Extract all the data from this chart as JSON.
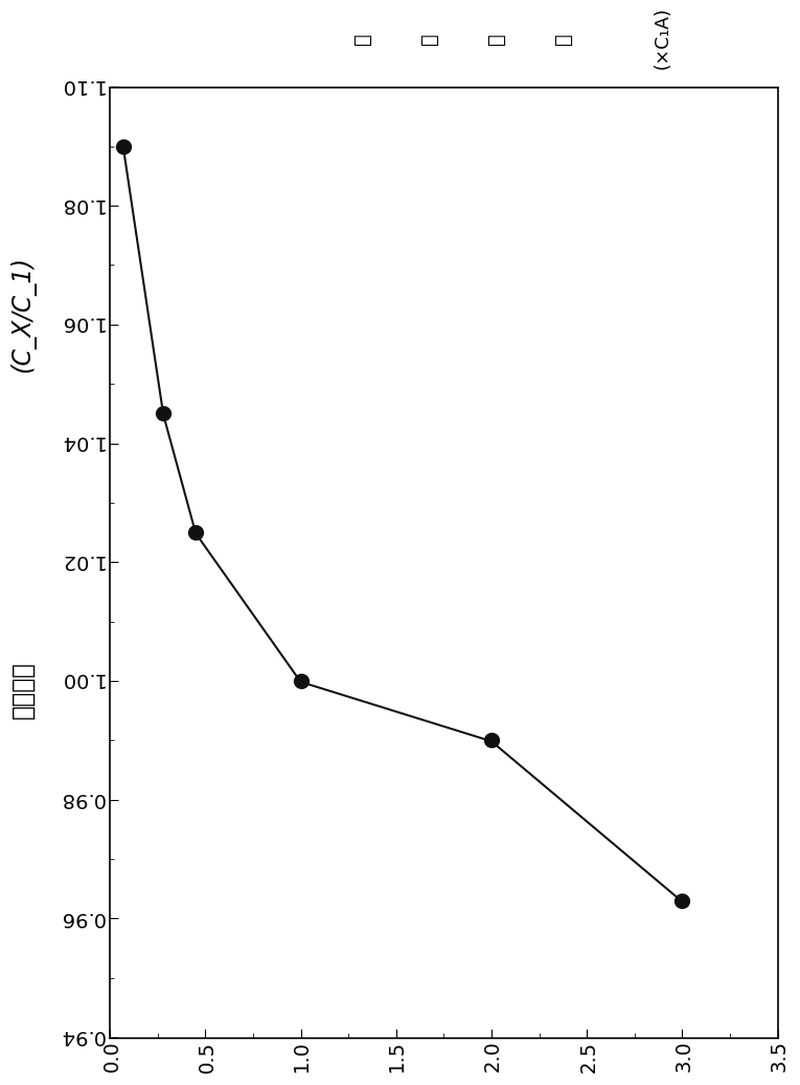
{
  "title_cn": "相对容量",
  "title_formula": "(C_X/C_1)",
  "ylabel_line1": "放",
  "ylabel_line2": "电",
  "ylabel_line3": "倍",
  "ylabel_line4": "率",
  "ylabel_formula": "(×C₁A)",
  "x_data": [
    1.09,
    1.045,
    1.025,
    1.0,
    0.99,
    0.963
  ],
  "y_data": [
    0.07,
    0.28,
    0.45,
    1.0,
    2.0,
    3.0
  ],
  "xlim": [
    0.94,
    1.1
  ],
  "ylim": [
    0.0,
    3.5
  ],
  "xticks": [
    0.94,
    0.96,
    0.98,
    1.0,
    1.02,
    1.04,
    1.06,
    1.08,
    1.1
  ],
  "yticks": [
    0.0,
    0.5,
    1.0,
    1.5,
    2.0,
    2.5,
    3.0,
    3.5
  ],
  "marker_color": "#111111",
  "line_color": "#111111",
  "marker_size": 10,
  "line_width": 1.5,
  "background_color": "#ffffff"
}
